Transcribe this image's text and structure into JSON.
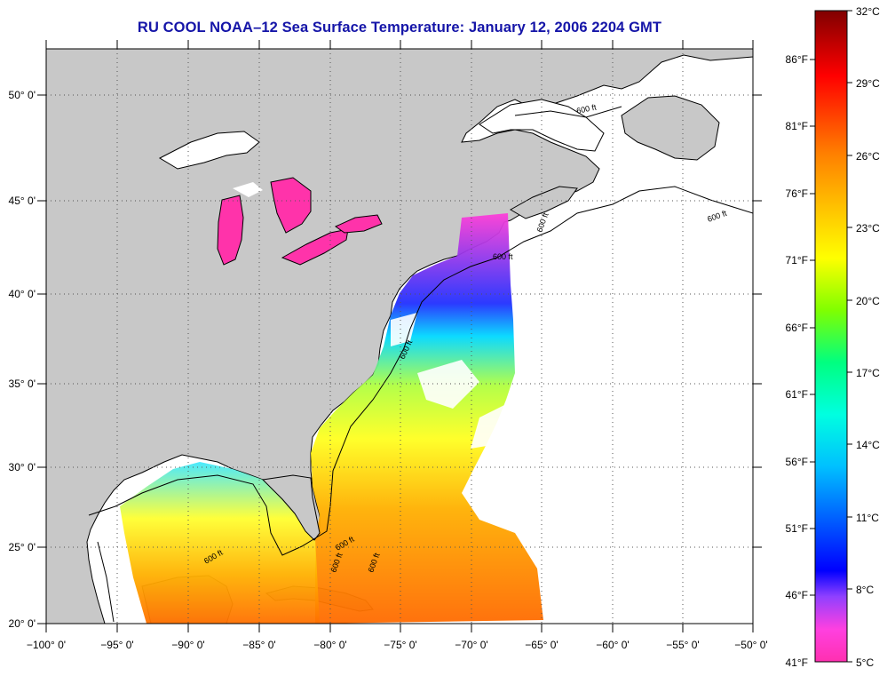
{
  "title": "RU COOL  NOAA–12  Sea Surface Temperature:  January 12, 2006 2204 GMT",
  "axes": {
    "lon_ticks": [
      "−100° 0'",
      "−95° 0'",
      "−90° 0'",
      "−85° 0'",
      "−80° 0'",
      "−75° 0'",
      "−70° 0'",
      "−65° 0'",
      "−60° 0'",
      "−55° 0'",
      "−50° 0'"
    ],
    "lat_ticks": [
      "50° 0'",
      "45° 0'",
      "40° 0'",
      "35° 0'",
      "30° 0'",
      "25° 0'",
      "20° 0'"
    ],
    "lon_range": [
      -100,
      -50
    ],
    "lat_range": [
      20,
      52.5
    ],
    "grid": "dotted"
  },
  "colorbar": {
    "fahrenheit_labels": [
      "86°F",
      "81°F",
      "76°F",
      "71°F",
      "66°F",
      "61°F",
      "56°F",
      "51°F",
      "46°F",
      "41°F"
    ],
    "celsius_labels": [
      "32°C",
      "29°C",
      "26°C",
      "23°C",
      "20°C",
      "17°C",
      "14°C",
      "11°C",
      "8°C",
      "5°C"
    ],
    "range_c": [
      5,
      32
    ],
    "colors": [
      "#ff30b0",
      "#ff40e0",
      "#9040ff",
      "#0000ff",
      "#0060ff",
      "#00c0ff",
      "#00ffe0",
      "#00ff80",
      "#80ff00",
      "#ffff00",
      "#ffc000",
      "#ff8000",
      "#ff4000",
      "#ff0000",
      "#c00000",
      "#800000"
    ]
  },
  "contour_labels": [
    "600 ft",
    "600 ft",
    "600 ft",
    "600 ft",
    "600 ft",
    "600 ft",
    "600 ft",
    "600 ft",
    "600 ft"
  ],
  "colors": {
    "land": "#c8c8c8",
    "no_data": "#ffffff",
    "title": "#1515a8",
    "cold_water": "#ff33aa"
  }
}
